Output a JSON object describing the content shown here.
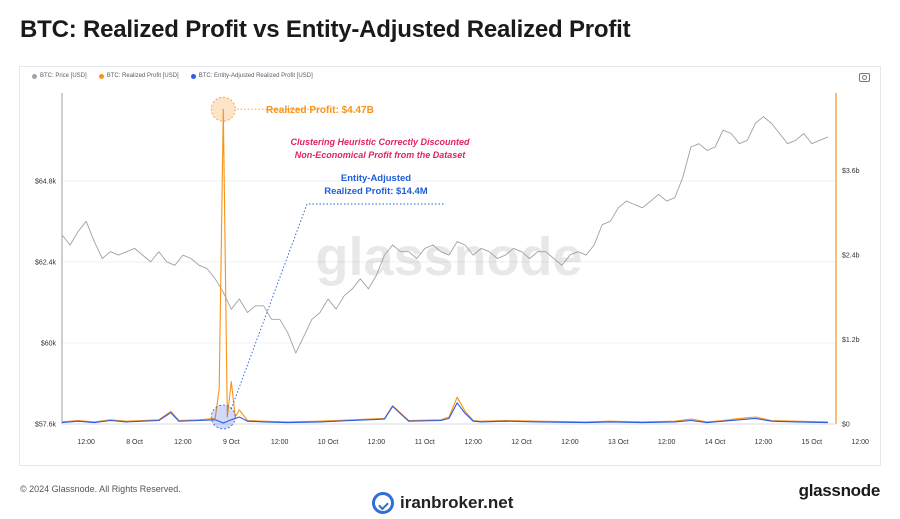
{
  "title": "BTC: Realized Profit vs Entity-Adjusted Realized Profit",
  "footer": {
    "copyright": "© 2024 Glassnode. All Rights Reserved.",
    "brand": "glassnode",
    "overlay_brand": "iranbroker.net"
  },
  "watermark": "glassnode",
  "icons": {
    "camera": "camera-icon",
    "broker": "check-circle-icon"
  },
  "colors": {
    "price": "#9ea1a7",
    "realized_profit": "#f7931a",
    "entity_adjusted": "#2d5be3",
    "annotation_pink": "#e0245e",
    "annotation_blue": "#1f5fd6"
  },
  "chart_data": {
    "type": "line",
    "title": "BTC: Realized Profit vs Entity-Adjusted Realized Profit",
    "legend": [
      "BTC: Price [USD]",
      "BTC: Realized Profit [USD]",
      "BTC: Entity-Adjusted Realized Profit [USD]"
    ],
    "legend_position": "top-left",
    "grid": true,
    "x_tick_labels": [
      "12:00",
      "8 Oct",
      "12:00",
      "9 Oct",
      "12:00",
      "10 Oct",
      "12:00",
      "11 Oct",
      "12:00",
      "12 Oct",
      "12:00",
      "13 Oct",
      "12:00",
      "14 Oct",
      "12:00",
      "15 Oct",
      "12:00"
    ],
    "x_range_hours": [
      6,
      198
    ],
    "y_left": {
      "label": "BTC: Price [USD]",
      "ticks": [
        "$57.6k",
        "$60k",
        "$62.4k",
        "$64.8k"
      ],
      "tick_values": [
        57600,
        60000,
        62400,
        64800
      ],
      "range": [
        57600,
        67400
      ]
    },
    "y_right": {
      "label": "Realized Profit [USD]",
      "ticks": [
        "$0",
        "$1.2b",
        "$2.4b",
        "$3.6b"
      ],
      "tick_values": [
        0,
        1.2,
        2.4,
        3.6
      ],
      "range": [
        0,
        4.7
      ]
    },
    "series": [
      {
        "name": "BTC: Price [USD]",
        "axis": "left",
        "x_hours": [
          6,
          8,
          10,
          12,
          14,
          16,
          18,
          20,
          22,
          24,
          26,
          28,
          30,
          32,
          34,
          36,
          38,
          40,
          42,
          44,
          46,
          48,
          50,
          52,
          54,
          56,
          58,
          60,
          62,
          64,
          66,
          68,
          70,
          72,
          74,
          76,
          78,
          80,
          82,
          84,
          86,
          88,
          90,
          92,
          94,
          96,
          98,
          100,
          102,
          104,
          106,
          108,
          110,
          112,
          114,
          116,
          118,
          120,
          122,
          124,
          126,
          128,
          130,
          132,
          134,
          136,
          138,
          140,
          142,
          144,
          146,
          148,
          150,
          152,
          154,
          156,
          158,
          160,
          162,
          164,
          166,
          168,
          170,
          172,
          174,
          176,
          178,
          180,
          182,
          184,
          186,
          188,
          190,
          192,
          194,
          196
        ],
        "values": [
          63200,
          62900,
          63300,
          63600,
          63000,
          62500,
          62700,
          62600,
          62700,
          62800,
          62600,
          62400,
          62700,
          62400,
          62300,
          62600,
          62500,
          62300,
          62200,
          61900,
          61500,
          61000,
          61300,
          60900,
          61100,
          61100,
          60700,
          60700,
          60300,
          59700,
          60200,
          60700,
          60900,
          61300,
          61000,
          61400,
          61600,
          61900,
          61600,
          62000,
          62600,
          62900,
          62700,
          62700,
          62500,
          62800,
          62900,
          62700,
          62600,
          63000,
          62900,
          62600,
          62800,
          62700,
          62500,
          62600,
          62800,
          62700,
          62500,
          62700,
          62700,
          62500,
          62300,
          62600,
          62700,
          62600,
          62900,
          63500,
          63600,
          64000,
          64200,
          64100,
          64000,
          64200,
          64400,
          64200,
          64300,
          64900,
          65800,
          65900,
          65700,
          65800,
          66300,
          66200,
          65900,
          66000,
          66500,
          66700,
          66500,
          66200,
          65900,
          66000,
          66200,
          65900,
          66000,
          66100
        ]
      },
      {
        "name": "BTC: Realized Profit [USD]",
        "axis": "right",
        "x_hours": [
          6,
          10,
          14,
          18,
          22,
          26,
          30,
          33,
          35,
          40,
          44,
          45,
          46,
          47,
          48,
          49,
          50,
          52,
          56,
          62,
          70,
          78,
          86,
          88,
          92,
          100,
          102,
          104,
          106,
          108,
          110,
          116,
          124,
          136,
          142,
          150,
          158,
          162,
          166,
          170,
          174,
          178,
          182,
          188,
          196
        ],
        "values": [
          0.03,
          0.05,
          0.03,
          0.06,
          0.04,
          0.05,
          0.06,
          0.18,
          0.05,
          0.06,
          0.08,
          0.5,
          4.47,
          0.1,
          0.6,
          0.1,
          0.2,
          0.05,
          0.04,
          0.03,
          0.04,
          0.06,
          0.08,
          0.26,
          0.05,
          0.06,
          0.1,
          0.38,
          0.18,
          0.05,
          0.04,
          0.05,
          0.04,
          0.03,
          0.04,
          0.03,
          0.04,
          0.07,
          0.03,
          0.05,
          0.08,
          0.1,
          0.05,
          0.04,
          0.03
        ]
      },
      {
        "name": "BTC: Entity-Adjusted Realized Profit [USD]",
        "axis": "right",
        "x_hours": [
          6,
          10,
          14,
          18,
          22,
          26,
          30,
          33,
          35,
          40,
          44,
          46,
          48,
          50,
          52,
          56,
          62,
          70,
          78,
          86,
          88,
          92,
          100,
          102,
          104,
          106,
          108,
          110,
          116,
          124,
          136,
          142,
          150,
          158,
          162,
          166,
          170,
          174,
          178,
          182,
          188,
          196
        ],
        "values": [
          0.02,
          0.04,
          0.02,
          0.05,
          0.03,
          0.04,
          0.05,
          0.16,
          0.04,
          0.05,
          0.06,
          0.0144,
          0.06,
          0.1,
          0.04,
          0.03,
          0.02,
          0.03,
          0.05,
          0.07,
          0.25,
          0.04,
          0.05,
          0.08,
          0.3,
          0.15,
          0.04,
          0.03,
          0.04,
          0.03,
          0.02,
          0.03,
          0.02,
          0.03,
          0.05,
          0.02,
          0.04,
          0.06,
          0.08,
          0.04,
          0.03,
          0.02
        ]
      }
    ],
    "annotations": [
      {
        "text": "Realized Profit: $4.47B",
        "series": "BTC: Realized Profit [USD]",
        "x_hours": 46,
        "value": 4.47
      },
      {
        "text": "Clustering Heuristic Correctly Discounted",
        "line2": "Non-Economical Profit from the Dataset"
      },
      {
        "text": "Entity-Adjusted",
        "line2": "Realized Profit: $14.4M",
        "series": "BTC: Entity-Adjusted Realized Profit [USD]",
        "x_hours": 46,
        "value": 0.0144
      }
    ]
  }
}
